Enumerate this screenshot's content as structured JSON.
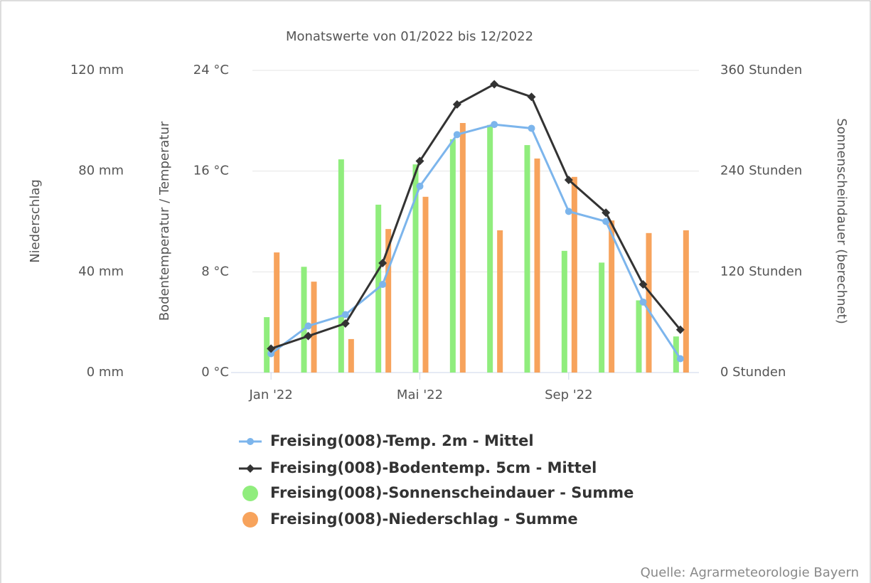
{
  "chart_data": {
    "type": "combo",
    "title": "Monatswerte von 01/2022 bis 12/2022",
    "source": "Quelle: Agrarmeteorologie Bayern",
    "categories": [
      "Jan '22",
      null,
      null,
      null,
      "Mai '22",
      null,
      null,
      null,
      "Sep '22",
      null,
      null,
      null
    ],
    "ylabel": "Niederschlag",
    "ylim": [
      0,
      120
    ],
    "yticks": [
      {
        "value": 0,
        "label": "0 mm"
      },
      {
        "value": 40,
        "label": "40 mm"
      },
      {
        "value": 80,
        "label": "80 mm"
      },
      {
        "value": 120,
        "label": "120 mm"
      }
    ],
    "y2label": "Bodentemperatur / Temperatur",
    "y2lim": [
      0,
      24
    ],
    "y2ticks": [
      {
        "value": 0,
        "label": "0 °C"
      },
      {
        "value": 8,
        "label": "8 °C"
      },
      {
        "value": 16,
        "label": "16 °C"
      },
      {
        "value": 24,
        "label": "24 °C"
      }
    ],
    "y3label": "Sonnenscheindauer (berechnet)",
    "y3lim": [
      0,
      360
    ],
    "y3ticks": [
      {
        "value": 0,
        "label": "0 Stunden"
      },
      {
        "value": 120,
        "label": "120 Stunden"
      },
      {
        "value": 240,
        "label": "240 Stunden"
      },
      {
        "value": 360,
        "label": "360 Stunden"
      }
    ],
    "grid": true,
    "series": [
      {
        "name": "Freising(008)-Temp. 2m - Mittel",
        "type": "line",
        "marker": "circle",
        "axis": "y2",
        "color": "#7cb5ec",
        "values": [
          1.5,
          3.7,
          4.6,
          7.0,
          14.8,
          18.9,
          19.7,
          19.4,
          12.8,
          12.0,
          5.6,
          1.1
        ]
      },
      {
        "name": "Freising(008)-Bodentemp. 5cm - Mittel",
        "type": "line",
        "marker": "diamond",
        "axis": "y2",
        "color": "#333333",
        "values": [
          1.9,
          2.9,
          3.9,
          8.7,
          16.8,
          21.3,
          22.9,
          21.9,
          15.3,
          12.7,
          7.0,
          3.4
        ]
      },
      {
        "name": "Freising(008)-Sonnenscheindauer - Summe",
        "type": "bar",
        "axis": "y3",
        "color": "#90ed7d",
        "values": [
          66,
          126,
          254,
          200,
          248,
          278,
          295,
          271,
          145,
          131,
          86,
          43
        ]
      },
      {
        "name": "Freising(008)-Niederschlag - Summe",
        "type": "bar",
        "axis": "y",
        "color": "#f7a35c",
        "values": [
          47.7,
          36.1,
          13.3,
          57,
          69.8,
          99.1,
          56.5,
          85,
          77.7,
          60.4,
          55.4,
          56.5
        ]
      }
    ]
  }
}
